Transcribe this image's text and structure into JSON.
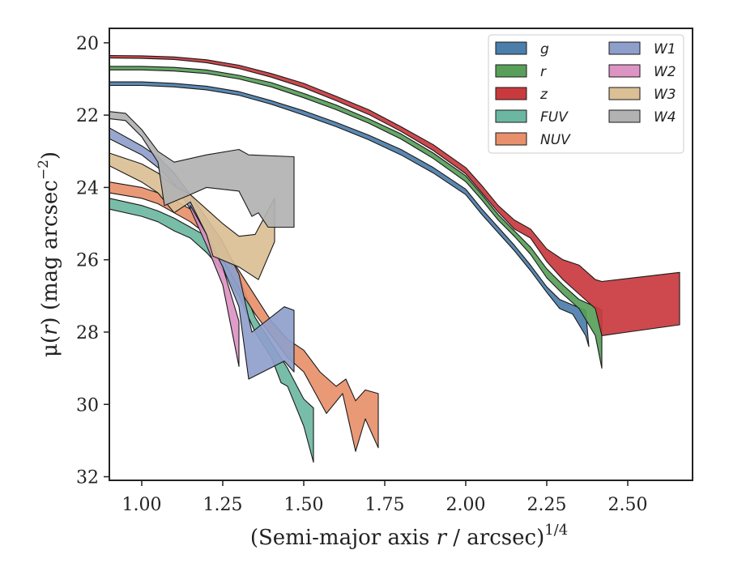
{
  "chart_data": {
    "type": "area",
    "xlabel": "(Semi-major axis r / arcsec)",
    "xlabel_parts": [
      "(Semi-major axis ",
      "r",
      " / arcsec)",
      "1/4"
    ],
    "ylabel_parts": [
      "μ(",
      "r",
      ") (mag arcsec",
      "−2",
      ")"
    ],
    "xlim": [
      0.9,
      2.7
    ],
    "ylim": [
      32.1,
      19.6
    ],
    "y_inverted": true,
    "xticks": [
      1.0,
      1.25,
      1.5,
      1.75,
      2.0,
      2.25,
      2.5
    ],
    "xtick_labels": [
      "1.00",
      "1.25",
      "1.50",
      "1.75",
      "2.00",
      "2.25",
      "2.50"
    ],
    "yticks": [
      20,
      22,
      24,
      26,
      28,
      30,
      32
    ],
    "ytick_labels": [
      "20",
      "22",
      "24",
      "26",
      "28",
      "30",
      "32"
    ],
    "legend_position": "top-right",
    "legend_columns": 2,
    "grid": false,
    "series": [
      {
        "name": "g",
        "color": "#4c7eab",
        "upper": [
          [
            0.9,
            21.08
          ],
          [
            1.0,
            21.08
          ],
          [
            1.1,
            21.12
          ],
          [
            1.2,
            21.2
          ],
          [
            1.3,
            21.35
          ],
          [
            1.4,
            21.6
          ],
          [
            1.5,
            21.88
          ],
          [
            1.6,
            22.2
          ],
          [
            1.7,
            22.55
          ],
          [
            1.8,
            22.95
          ],
          [
            1.9,
            23.45
          ],
          [
            2.0,
            24.05
          ],
          [
            2.05,
            24.6
          ],
          [
            2.1,
            25.1
          ],
          [
            2.15,
            25.6
          ],
          [
            2.2,
            26.15
          ],
          [
            2.25,
            26.75
          ],
          [
            2.29,
            27.1
          ],
          [
            2.33,
            27.25
          ],
          [
            2.37,
            27.4
          ]
        ],
        "lower": [
          [
            0.9,
            21.18
          ],
          [
            1.0,
            21.18
          ],
          [
            1.1,
            21.22
          ],
          [
            1.2,
            21.3
          ],
          [
            1.3,
            21.45
          ],
          [
            1.4,
            21.7
          ],
          [
            1.5,
            22.0
          ],
          [
            1.6,
            22.32
          ],
          [
            1.7,
            22.68
          ],
          [
            1.8,
            23.1
          ],
          [
            1.9,
            23.6
          ],
          [
            2.0,
            24.2
          ],
          [
            2.05,
            24.75
          ],
          [
            2.1,
            25.25
          ],
          [
            2.15,
            25.75
          ],
          [
            2.2,
            26.3
          ],
          [
            2.25,
            26.9
          ],
          [
            2.29,
            27.35
          ],
          [
            2.33,
            27.5
          ],
          [
            2.37,
            28.1
          ],
          [
            2.38,
            28.4
          ]
        ]
      },
      {
        "name": "r",
        "color": "#58a05a",
        "upper": [
          [
            0.9,
            20.65
          ],
          [
            1.0,
            20.65
          ],
          [
            1.1,
            20.68
          ],
          [
            1.2,
            20.75
          ],
          [
            1.3,
            20.9
          ],
          [
            1.4,
            21.1
          ],
          [
            1.5,
            21.4
          ],
          [
            1.6,
            21.72
          ],
          [
            1.7,
            22.1
          ],
          [
            1.8,
            22.52
          ],
          [
            1.9,
            23.05
          ],
          [
            2.0,
            23.68
          ],
          [
            2.05,
            24.2
          ],
          [
            2.1,
            24.75
          ],
          [
            2.15,
            25.2
          ],
          [
            2.2,
            25.65
          ],
          [
            2.25,
            26.25
          ],
          [
            2.3,
            26.7
          ],
          [
            2.35,
            27.1
          ],
          [
            2.4,
            27.3
          ],
          [
            2.42,
            27.4
          ]
        ],
        "lower": [
          [
            0.9,
            20.75
          ],
          [
            1.0,
            20.75
          ],
          [
            1.1,
            20.78
          ],
          [
            1.2,
            20.85
          ],
          [
            1.3,
            21.0
          ],
          [
            1.4,
            21.22
          ],
          [
            1.5,
            21.52
          ],
          [
            1.6,
            21.85
          ],
          [
            1.7,
            22.22
          ],
          [
            1.8,
            22.66
          ],
          [
            1.9,
            23.2
          ],
          [
            2.0,
            23.84
          ],
          [
            2.05,
            24.35
          ],
          [
            2.1,
            24.9
          ],
          [
            2.15,
            25.35
          ],
          [
            2.2,
            25.85
          ],
          [
            2.25,
            26.5
          ],
          [
            2.3,
            26.95
          ],
          [
            2.35,
            27.35
          ],
          [
            2.4,
            28.1
          ],
          [
            2.42,
            29.0
          ]
        ]
      },
      {
        "name": "z",
        "color": "#c93a3f",
        "upper": [
          [
            0.9,
            20.35
          ],
          [
            1.0,
            20.36
          ],
          [
            1.1,
            20.39
          ],
          [
            1.2,
            20.47
          ],
          [
            1.3,
            20.62
          ],
          [
            1.4,
            20.85
          ],
          [
            1.5,
            21.12
          ],
          [
            1.6,
            21.48
          ],
          [
            1.7,
            21.85
          ],
          [
            1.8,
            22.32
          ],
          [
            1.9,
            22.82
          ],
          [
            2.0,
            23.45
          ],
          [
            2.05,
            23.95
          ],
          [
            2.1,
            24.5
          ],
          [
            2.15,
            24.9
          ],
          [
            2.2,
            25.15
          ],
          [
            2.25,
            25.7
          ],
          [
            2.3,
            26.0
          ],
          [
            2.35,
            26.15
          ],
          [
            2.4,
            26.55
          ],
          [
            2.42,
            26.6
          ],
          [
            2.66,
            26.35
          ]
        ],
        "lower": [
          [
            0.9,
            20.42
          ],
          [
            1.0,
            20.43
          ],
          [
            1.1,
            20.46
          ],
          [
            1.2,
            20.55
          ],
          [
            1.3,
            20.71
          ],
          [
            1.4,
            20.95
          ],
          [
            1.5,
            21.24
          ],
          [
            1.6,
            21.6
          ],
          [
            1.7,
            21.98
          ],
          [
            1.8,
            22.45
          ],
          [
            1.9,
            22.98
          ],
          [
            2.0,
            23.62
          ],
          [
            2.05,
            24.15
          ],
          [
            2.1,
            24.68
          ],
          [
            2.15,
            25.15
          ],
          [
            2.2,
            25.4
          ],
          [
            2.25,
            26.05
          ],
          [
            2.3,
            26.55
          ],
          [
            2.35,
            26.95
          ],
          [
            2.4,
            27.35
          ],
          [
            2.42,
            28.1
          ],
          [
            2.66,
            27.8
          ]
        ]
      },
      {
        "name": "FUV",
        "color": "#6cb7a1",
        "upper": [
          [
            0.9,
            24.3
          ],
          [
            1.0,
            24.5
          ],
          [
            1.05,
            24.65
          ],
          [
            1.1,
            24.85
          ],
          [
            1.15,
            25.1
          ],
          [
            1.2,
            25.35
          ],
          [
            1.25,
            25.8
          ],
          [
            1.3,
            26.5
          ],
          [
            1.35,
            27.6
          ],
          [
            1.4,
            28.3
          ],
          [
            1.45,
            29.0
          ],
          [
            1.5,
            29.85
          ],
          [
            1.53,
            30.1
          ]
        ],
        "lower": [
          [
            0.9,
            24.6
          ],
          [
            1.0,
            24.8
          ],
          [
            1.05,
            24.95
          ],
          [
            1.1,
            25.2
          ],
          [
            1.15,
            25.4
          ],
          [
            1.2,
            25.8
          ],
          [
            1.25,
            26.3
          ],
          [
            1.3,
            27.0
          ],
          [
            1.35,
            28.0
          ],
          [
            1.4,
            28.7
          ],
          [
            1.43,
            29.4
          ],
          [
            1.45,
            29.5
          ],
          [
            1.5,
            30.6
          ],
          [
            1.53,
            31.6
          ]
        ]
      },
      {
        "name": "NUV",
        "color": "#e8906b",
        "upper": [
          [
            0.9,
            23.85
          ],
          [
            1.0,
            24.0
          ],
          [
            1.05,
            24.15
          ],
          [
            1.1,
            24.35
          ],
          [
            1.15,
            24.6
          ],
          [
            1.2,
            25.0
          ],
          [
            1.25,
            25.6
          ],
          [
            1.3,
            26.3
          ],
          [
            1.35,
            27.0
          ],
          [
            1.4,
            27.7
          ],
          [
            1.45,
            28.2
          ],
          [
            1.5,
            28.5
          ],
          [
            1.55,
            29.1
          ],
          [
            1.6,
            29.5
          ],
          [
            1.63,
            29.3
          ],
          [
            1.66,
            29.9
          ],
          [
            1.69,
            29.6
          ],
          [
            1.73,
            29.7
          ]
        ],
        "lower": [
          [
            0.9,
            24.15
          ],
          [
            1.0,
            24.3
          ],
          [
            1.05,
            24.45
          ],
          [
            1.1,
            24.7
          ],
          [
            1.15,
            24.95
          ],
          [
            1.2,
            25.3
          ],
          [
            1.25,
            26.0
          ],
          [
            1.3,
            26.8
          ],
          [
            1.35,
            27.5
          ],
          [
            1.4,
            28.1
          ],
          [
            1.45,
            28.7
          ],
          [
            1.5,
            29.1
          ],
          [
            1.57,
            30.25
          ],
          [
            1.62,
            29.7
          ],
          [
            1.66,
            31.3
          ],
          [
            1.69,
            30.4
          ],
          [
            1.73,
            31.2
          ]
        ]
      },
      {
        "name": "W1",
        "color": "#8f9fcb",
        "upper": [
          [
            0.9,
            22.35
          ],
          [
            1.0,
            22.85
          ],
          [
            1.05,
            23.15
          ],
          [
            1.1,
            23.6
          ],
          [
            1.15,
            24.2
          ],
          [
            1.2,
            24.85
          ],
          [
            1.25,
            25.5
          ],
          [
            1.3,
            26.4
          ],
          [
            1.34,
            28.0
          ],
          [
            1.44,
            27.3
          ],
          [
            1.47,
            27.4
          ]
        ],
        "lower": [
          [
            0.9,
            22.65
          ],
          [
            1.0,
            23.1
          ],
          [
            1.05,
            23.45
          ],
          [
            1.1,
            23.9
          ],
          [
            1.15,
            24.6
          ],
          [
            1.2,
            25.4
          ],
          [
            1.25,
            26.2
          ],
          [
            1.3,
            27.3
          ],
          [
            1.33,
            29.3
          ],
          [
            1.44,
            28.8
          ],
          [
            1.47,
            29.1
          ]
        ]
      },
      {
        "name": "W2",
        "color": "#dd94c4",
        "upper": [
          [
            1.15,
            24.5
          ],
          [
            1.2,
            25.3
          ],
          [
            1.25,
            26.2
          ],
          [
            1.3,
            27.7
          ]
        ],
        "lower": [
          [
            1.15,
            24.6
          ],
          [
            1.2,
            25.6
          ],
          [
            1.25,
            26.7
          ],
          [
            1.3,
            28.95
          ]
        ]
      },
      {
        "name": "W3",
        "color": "#dbbf95",
        "upper": [
          [
            0.9,
            23.05
          ],
          [
            1.0,
            23.35
          ],
          [
            1.05,
            23.6
          ],
          [
            1.1,
            23.95
          ],
          [
            1.15,
            24.2
          ],
          [
            1.2,
            24.6
          ],
          [
            1.25,
            25.0
          ],
          [
            1.3,
            25.35
          ],
          [
            1.35,
            25.3
          ],
          [
            1.41,
            24.3
          ]
        ],
        "lower": [
          [
            0.9,
            23.4
          ],
          [
            1.0,
            23.85
          ],
          [
            1.05,
            24.15
          ],
          [
            1.1,
            24.7
          ],
          [
            1.15,
            24.4
          ],
          [
            1.2,
            25.3
          ],
          [
            1.22,
            25.9
          ],
          [
            1.3,
            26.2
          ],
          [
            1.36,
            26.55
          ],
          [
            1.41,
            25.5
          ]
        ]
      },
      {
        "name": "W4",
        "color": "#b2b2b2",
        "upper": [
          [
            0.9,
            21.9
          ],
          [
            0.95,
            21.95
          ],
          [
            1.0,
            22.4
          ],
          [
            1.05,
            23.0
          ],
          [
            1.1,
            23.3
          ],
          [
            1.2,
            23.1
          ],
          [
            1.3,
            22.95
          ],
          [
            1.33,
            23.1
          ],
          [
            1.47,
            23.15
          ]
        ],
        "lower": [
          [
            0.9,
            22.1
          ],
          [
            0.95,
            22.15
          ],
          [
            1.0,
            22.6
          ],
          [
            1.05,
            23.3
          ],
          [
            1.07,
            24.5
          ],
          [
            1.15,
            24.2
          ],
          [
            1.2,
            24.0
          ],
          [
            1.3,
            24.1
          ],
          [
            1.34,
            24.8
          ],
          [
            1.36,
            24.7
          ],
          [
            1.39,
            25.1
          ],
          [
            1.47,
            25.1
          ]
        ]
      }
    ]
  }
}
